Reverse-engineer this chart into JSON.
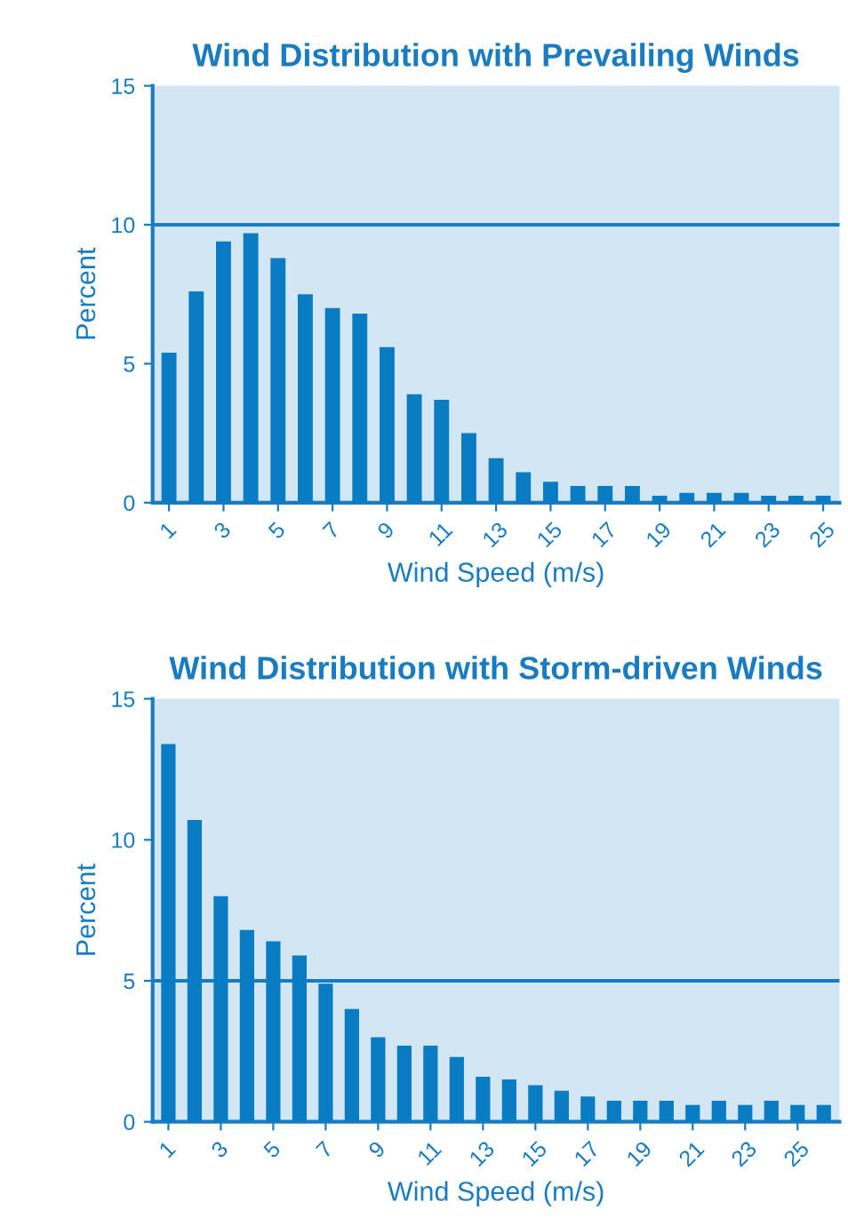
{
  "chart_data": [
    {
      "type": "bar",
      "title": "Wind Distribution with Prevailing Winds",
      "xlabel": "Wind Speed (m/s)",
      "ylabel": "Percent",
      "categories": [
        "1",
        null,
        "3",
        null,
        "5",
        null,
        "7",
        null,
        "9",
        null,
        "11",
        null,
        "13",
        null,
        "15",
        null,
        "17",
        null,
        "19",
        null,
        "21",
        null,
        "23",
        null,
        "25"
      ],
      "values": [
        5.4,
        7.6,
        9.4,
        9.7,
        8.8,
        7.5,
        7.0,
        6.8,
        5.6,
        3.9,
        3.7,
        2.5,
        1.6,
        1.1,
        0.75,
        0.6,
        0.6,
        0.6,
        0.25,
        0.35,
        0.35,
        0.35,
        0.25,
        0.25,
        0.25
      ],
      "color": "#0a7cc4",
      "ylim": [
        0,
        15
      ],
      "yticks": [
        0,
        5,
        10,
        15
      ],
      "ref_lines": [
        {
          "axis": "y",
          "value": 10,
          "color": "#1a7cc0"
        }
      ]
    },
    {
      "type": "bar",
      "title": "Wind Distribution with Storm-driven Winds",
      "xlabel": "Wind Speed (m/s)",
      "ylabel": "Percent",
      "categories": [
        "1",
        null,
        "3",
        null,
        "5",
        null,
        "7",
        null,
        "9",
        null,
        "11",
        null,
        "13",
        null,
        "15",
        null,
        "17",
        null,
        "19",
        null,
        "21",
        null,
        "23",
        null,
        "25",
        null
      ],
      "values": [
        13.4,
        10.7,
        8.0,
        6.8,
        6.4,
        5.9,
        4.9,
        4.0,
        3.0,
        2.7,
        2.7,
        2.3,
        1.6,
        1.5,
        1.3,
        1.1,
        0.9,
        0.75,
        0.75,
        0.75,
        0.6,
        0.75,
        0.6,
        0.75,
        0.6,
        0.6
      ],
      "color": "#0a7cc4",
      "ylim": [
        0,
        15
      ],
      "yticks": [
        0,
        5,
        10,
        15
      ],
      "ref_lines": [
        {
          "axis": "y",
          "value": 5,
          "color": "#1a7cc0"
        }
      ]
    }
  ]
}
